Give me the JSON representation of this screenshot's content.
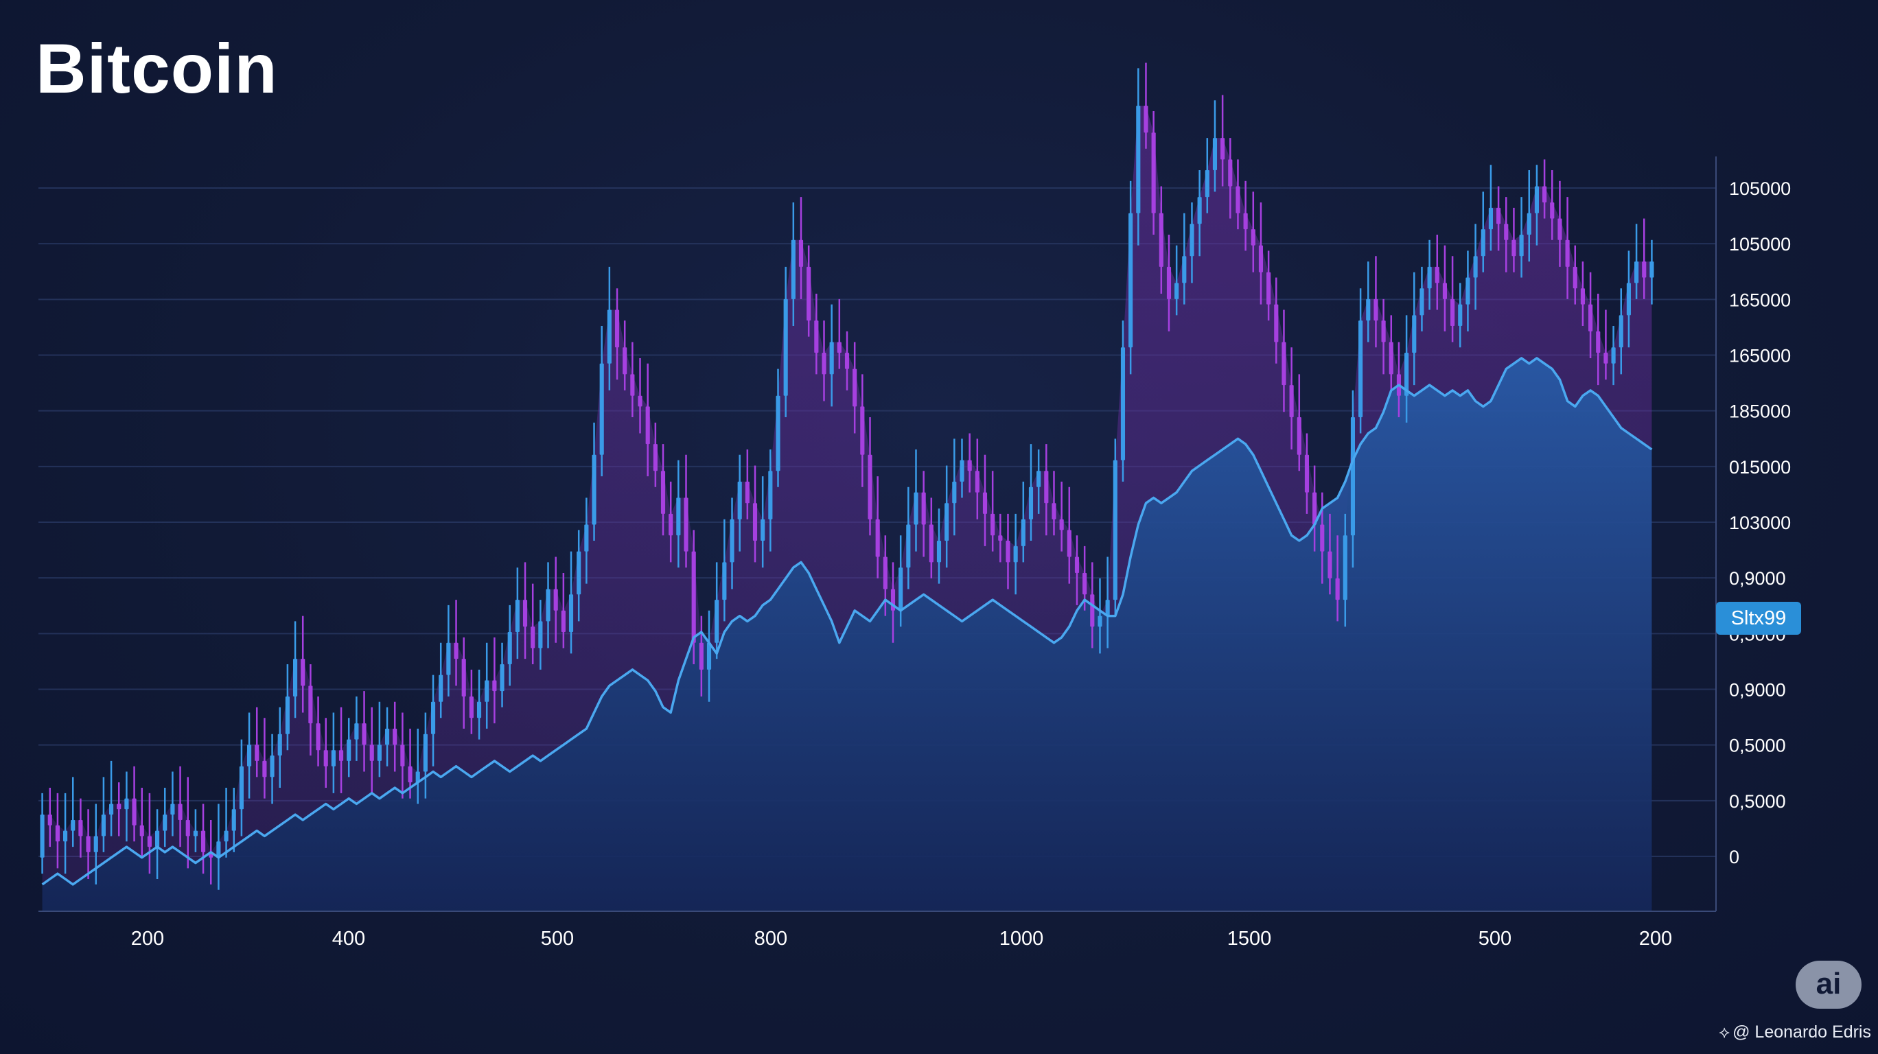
{
  "title": "Bitcoin",
  "colors": {
    "background": "#111a36",
    "grid": "#2a3a66",
    "candle_up": "#3a9be8",
    "candle_down": "#a640e0",
    "line": "#4aa8f0",
    "area_fill": "#2a5aa8",
    "purple_fill": "#6a2fa0",
    "badge": "#2a8fd8"
  },
  "price_badge": "Sltx99",
  "logo": "ai",
  "watermark": "@ Leonardo Edris",
  "chart_data": {
    "type": "candlestick",
    "title": "Bitcoin",
    "xlabel": "",
    "ylabel": "",
    "x_tick_labels": [
      "200",
      "400",
      "500",
      "800",
      "1000",
      "1500",
      "500",
      "200"
    ],
    "y_tick_labels": [
      "0",
      "0,5000",
      "0,5000",
      "0,9000",
      "0,5000",
      "0,9000",
      "103000",
      "015000",
      "185000",
      "165000",
      "165000",
      "105000",
      "105000"
    ],
    "y_value_range": [
      -10,
      145
    ],
    "grid": true,
    "legend": "none",
    "candles": [
      [
        0,
        8
      ],
      [
        8,
        6
      ],
      [
        6,
        3
      ],
      [
        3,
        5
      ],
      [
        5,
        7
      ],
      [
        7,
        4
      ],
      [
        4,
        1
      ],
      [
        1,
        4
      ],
      [
        4,
        8
      ],
      [
        8,
        10
      ],
      [
        10,
        9
      ],
      [
        9,
        11
      ],
      [
        11,
        6
      ],
      [
        6,
        4
      ],
      [
        4,
        2
      ],
      [
        2,
        5
      ],
      [
        5,
        8
      ],
      [
        8,
        10
      ],
      [
        10,
        7
      ],
      [
        7,
        4
      ],
      [
        4,
        5
      ],
      [
        5,
        1
      ],
      [
        1,
        0
      ],
      [
        0,
        3
      ],
      [
        3,
        5
      ],
      [
        5,
        9
      ],
      [
        9,
        17
      ],
      [
        17,
        21
      ],
      [
        21,
        18
      ],
      [
        18,
        15
      ],
      [
        15,
        19
      ],
      [
        19,
        23
      ],
      [
        23,
        30
      ],
      [
        30,
        37
      ],
      [
        37,
        32
      ],
      [
        32,
        25
      ],
      [
        25,
        20
      ],
      [
        20,
        17
      ],
      [
        17,
        20
      ],
      [
        20,
        18
      ],
      [
        18,
        22
      ],
      [
        22,
        25
      ],
      [
        25,
        21
      ],
      [
        21,
        18
      ],
      [
        18,
        21
      ],
      [
        21,
        24
      ],
      [
        24,
        21
      ],
      [
        21,
        17
      ],
      [
        17,
        14
      ],
      [
        14,
        16
      ],
      [
        16,
        23
      ],
      [
        23,
        29
      ],
      [
        29,
        34
      ],
      [
        34,
        40
      ],
      [
        40,
        37
      ],
      [
        37,
        30
      ],
      [
        30,
        26
      ],
      [
        26,
        29
      ],
      [
        29,
        33
      ],
      [
        33,
        31
      ],
      [
        31,
        36
      ],
      [
        36,
        42
      ],
      [
        42,
        48
      ],
      [
        48,
        43
      ],
      [
        43,
        39
      ],
      [
        39,
        44
      ],
      [
        44,
        50
      ],
      [
        50,
        46
      ],
      [
        46,
        42
      ],
      [
        42,
        49
      ],
      [
        49,
        57
      ],
      [
        57,
        62
      ],
      [
        62,
        75
      ],
      [
        75,
        92
      ],
      [
        92,
        102
      ],
      [
        102,
        95
      ],
      [
        95,
        90
      ],
      [
        90,
        86
      ],
      [
        86,
        84
      ],
      [
        84,
        77
      ],
      [
        77,
        72
      ],
      [
        72,
        64
      ],
      [
        64,
        60
      ],
      [
        60,
        67
      ],
      [
        67,
        57
      ],
      [
        57,
        40
      ],
      [
        40,
        35
      ],
      [
        35,
        40
      ],
      [
        40,
        48
      ],
      [
        48,
        55
      ],
      [
        55,
        63
      ],
      [
        63,
        70
      ],
      [
        70,
        66
      ],
      [
        66,
        59
      ],
      [
        59,
        63
      ],
      [
        63,
        72
      ],
      [
        72,
        86
      ],
      [
        86,
        104
      ],
      [
        104,
        115
      ],
      [
        115,
        110
      ],
      [
        110,
        100
      ],
      [
        100,
        94
      ],
      [
        94,
        90
      ],
      [
        90,
        96
      ],
      [
        96,
        94
      ],
      [
        94,
        91
      ],
      [
        91,
        84
      ],
      [
        84,
        75
      ],
      [
        75,
        63
      ],
      [
        63,
        56
      ],
      [
        56,
        50
      ],
      [
        50,
        46
      ],
      [
        46,
        54
      ],
      [
        54,
        62
      ],
      [
        62,
        68
      ],
      [
        68,
        62
      ],
      [
        62,
        55
      ],
      [
        55,
        59
      ],
      [
        59,
        66
      ],
      [
        66,
        70
      ],
      [
        70,
        74
      ],
      [
        74,
        72
      ],
      [
        72,
        68
      ],
      [
        68,
        64
      ],
      [
        64,
        60
      ],
      [
        60,
        59
      ],
      [
        59,
        55
      ],
      [
        55,
        58
      ],
      [
        58,
        63
      ],
      [
        63,
        69
      ],
      [
        69,
        72
      ],
      [
        72,
        66
      ],
      [
        66,
        63
      ],
      [
        63,
        61
      ],
      [
        61,
        56
      ],
      [
        56,
        53
      ],
      [
        53,
        49
      ],
      [
        49,
        43
      ],
      [
        43,
        45
      ],
      [
        45,
        48
      ],
      [
        48,
        74
      ],
      [
        74,
        95
      ],
      [
        95,
        120
      ],
      [
        120,
        140
      ],
      [
        140,
        135
      ],
      [
        135,
        120
      ],
      [
        120,
        110
      ],
      [
        110,
        104
      ],
      [
        104,
        107
      ],
      [
        107,
        112
      ],
      [
        112,
        118
      ],
      [
        118,
        123
      ],
      [
        123,
        128
      ],
      [
        128,
        134
      ],
      [
        134,
        130
      ],
      [
        130,
        125
      ],
      [
        125,
        120
      ],
      [
        120,
        117
      ],
      [
        117,
        114
      ],
      [
        114,
        109
      ],
      [
        109,
        103
      ],
      [
        103,
        96
      ],
      [
        96,
        88
      ],
      [
        88,
        82
      ],
      [
        82,
        75
      ],
      [
        75,
        68
      ],
      [
        68,
        62
      ],
      [
        62,
        57
      ],
      [
        57,
        52
      ],
      [
        52,
        48
      ],
      [
        48,
        60
      ],
      [
        60,
        82
      ],
      [
        82,
        100
      ],
      [
        100,
        104
      ],
      [
        104,
        100
      ],
      [
        100,
        96
      ],
      [
        96,
        90
      ],
      [
        90,
        86
      ],
      [
        86,
        94
      ],
      [
        94,
        101
      ],
      [
        101,
        106
      ],
      [
        106,
        110
      ],
      [
        110,
        107
      ],
      [
        107,
        104
      ],
      [
        104,
        99
      ],
      [
        99,
        103
      ],
      [
        103,
        108
      ],
      [
        108,
        112
      ],
      [
        112,
        117
      ],
      [
        117,
        121
      ],
      [
        121,
        118
      ],
      [
        118,
        115
      ],
      [
        115,
        112
      ],
      [
        112,
        116
      ],
      [
        116,
        120
      ],
      [
        120,
        125
      ],
      [
        125,
        122
      ],
      [
        122,
        119
      ],
      [
        119,
        115
      ],
      [
        115,
        110
      ],
      [
        110,
        106
      ],
      [
        106,
        103
      ],
      [
        103,
        98
      ],
      [
        98,
        94
      ],
      [
        94,
        92
      ],
      [
        92,
        95
      ],
      [
        95,
        101
      ],
      [
        101,
        107
      ],
      [
        107,
        111
      ],
      [
        111,
        108
      ],
      [
        108,
        111
      ]
    ],
    "line": [
      -5,
      -4,
      -3,
      -4,
      -5,
      -4,
      -3,
      -2,
      -1,
      0,
      1,
      2,
      1,
      0,
      1,
      2,
      1,
      2,
      1,
      0,
      -1,
      0,
      1,
      0,
      1,
      2,
      3,
      4,
      5,
      4,
      5,
      6,
      7,
      8,
      7,
      8,
      9,
      10,
      9,
      10,
      11,
      10,
      11,
      12,
      11,
      12,
      13,
      12,
      13,
      14,
      15,
      16,
      15,
      16,
      17,
      16,
      15,
      16,
      17,
      18,
      17,
      16,
      17,
      18,
      19,
      18,
      19,
      20,
      21,
      22,
      23,
      24,
      27,
      30,
      32,
      33,
      34,
      35,
      34,
      33,
      31,
      28,
      27,
      33,
      37,
      41,
      42,
      40,
      38,
      42,
      44,
      45,
      44,
      45,
      47,
      48,
      50,
      52,
      54,
      55,
      53,
      50,
      47,
      44,
      40,
      43,
      46,
      45,
      44,
      46,
      48,
      47,
      46,
      47,
      48,
      49,
      48,
      47,
      46,
      45,
      44,
      45,
      46,
      47,
      48,
      47,
      46,
      45,
      44,
      43,
      42,
      41,
      40,
      41,
      43,
      46,
      48,
      47,
      46,
      45,
      45,
      49,
      56,
      62,
      66,
      67,
      66,
      67,
      68,
      70,
      72,
      73,
      74,
      75,
      76,
      77,
      78,
      77,
      75,
      72,
      69,
      66,
      63,
      60,
      59,
      60,
      62,
      65,
      66,
      67,
      70,
      74,
      77,
      79,
      80,
      83,
      87,
      88,
      87,
      86,
      87,
      88,
      87,
      86,
      87,
      86,
      87,
      85,
      84,
      85,
      88,
      91,
      92,
      93,
      92,
      93,
      92,
      91,
      89,
      85,
      84,
      86,
      87,
      86,
      84,
      82,
      80,
      79,
      78,
      77,
      76
    ]
  }
}
